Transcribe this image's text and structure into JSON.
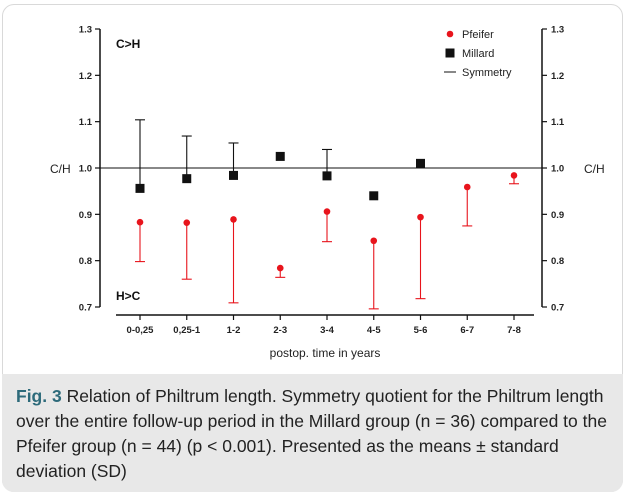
{
  "chart_data": {
    "type": "scatter",
    "categories": [
      "0-0,25",
      "0,25-1",
      "1-2",
      "2-3",
      "3-4",
      "4-5",
      "5-6",
      "6-7",
      "7-8"
    ],
    "xlabel": "postop. time in years",
    "ylabel_left": "C/H",
    "ylabel_right": "C/H",
    "ylim": [
      0.7,
      1.3
    ],
    "yticks": [
      "0.7",
      "0.8",
      "0.9",
      "1.0",
      "1.1",
      "1.2",
      "1.3"
    ],
    "reference_line": {
      "name": "Symmetry",
      "y": 1.0
    },
    "annotations": {
      "top": "C>H",
      "bottom": "H>C"
    },
    "legend_position": "top-right",
    "series": [
      {
        "name": "Pfeifer",
        "marker": "circle",
        "color": "#e8141c",
        "values": [
          0.883,
          0.882,
          0.889,
          0.784,
          0.906,
          0.843,
          0.894,
          0.959,
          0.984
        ],
        "sd": [
          0.085,
          0.122,
          0.18,
          0.02,
          0.065,
          0.147,
          0.176,
          0.084,
          0.018
        ],
        "error_direction": "down"
      },
      {
        "name": "Millard",
        "marker": "square",
        "color": "#111111",
        "values": [
          0.956,
          0.977,
          0.984,
          1.025,
          0.983,
          0.94,
          1.01,
          null,
          null
        ],
        "sd": [
          0.148,
          0.092,
          0.07,
          0,
          0.057,
          0,
          0,
          null,
          null
        ],
        "error_direction": "up"
      }
    ]
  },
  "caption": {
    "fig_label": "Fig. 3",
    "text": " Relation of Philtrum length. Symmetry quotient for the Philtrum length over the entire follow-up period in the Millard group (n = 36) compared to the Pfeifer group (n = 44) (p < 0.001). Presented as the means ± standard deviation (SD)"
  }
}
